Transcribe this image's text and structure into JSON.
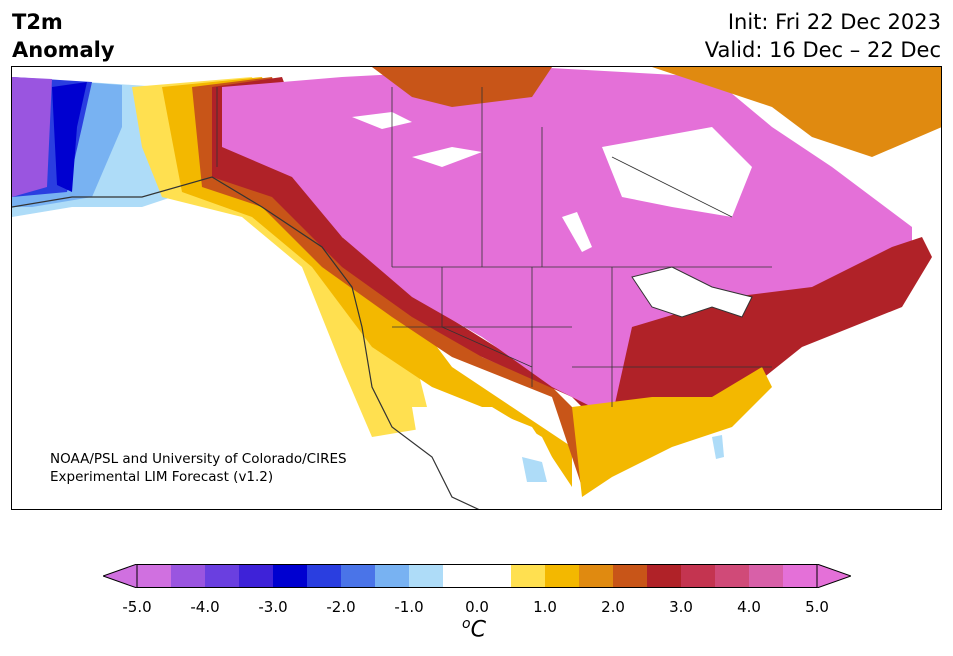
{
  "title": {
    "line1": "T2m",
    "line2": "Anomaly",
    "init": "Init: Fri 22 Dec 2023",
    "valid": "Valid: 16 Dec – 22 Dec"
  },
  "credit": {
    "line1": "NOAA/PSL and University of Colorado/CIRES",
    "line2": "Experimental LIM Forecast (v1.2)"
  },
  "colorbar": {
    "ticks": [
      "-5.0",
      "-4.0",
      "-3.0",
      "-2.0",
      "-1.0",
      "0.0",
      "1.0",
      "2.0",
      "3.0",
      "4.0",
      "5.0"
    ],
    "units_base": "o",
    "units_letter": "C",
    "colors": [
      "#d070e0",
      "#9a55e0",
      "#6a3fe0",
      "#3e22d8",
      "#0000d0",
      "#2a3ee0",
      "#4a74e8",
      "#78b2f2",
      "#aedcf8",
      "#ffffff",
      "#ffffff",
      "#ffe050",
      "#f3b800",
      "#e08a10",
      "#c85518",
      "#b02228",
      "#c43450",
      "#d04a78",
      "#d860a8",
      "#e470d8"
    ]
  },
  "map": {
    "region": "North America",
    "color_west_alaska": "#0000d0",
    "color_interior": "#e470d8",
    "color_southeast": "#f3b800",
    "color_coast": "#b02228"
  }
}
